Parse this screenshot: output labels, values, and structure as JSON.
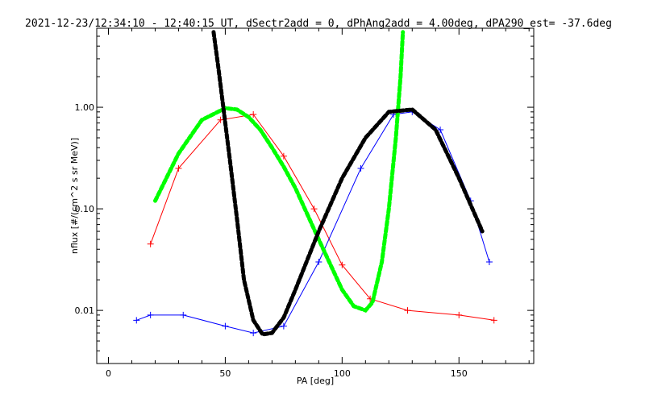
{
  "chart_data": {
    "type": "line",
    "title": "2021-12-23/12:34:10 - 12:40:15 UT, dSectr2add = 0, dPhAng2add = 4.00deg, dPA290_est= -37.6deg",
    "xlabel": "PA [deg]",
    "ylabel": "nflux [#/(cm^2 s sr MeV)]",
    "xlim": [
      -5,
      182
    ],
    "ylim": [
      0.003,
      6.0
    ],
    "yscale": "log",
    "x_ticks": [
      0,
      50,
      100,
      150
    ],
    "x_tick_labels": [
      "0",
      "50",
      "100",
      "150"
    ],
    "y_ticks": [
      0.01,
      0.1,
      1.0
    ],
    "y_tick_labels": [
      "0.01",
      "0.10",
      "1.00"
    ],
    "grid": false,
    "colors": {
      "red": "#ff0000",
      "blue": "#0000ff",
      "green": "#00ff00",
      "black": "#000000"
    },
    "series": [
      {
        "color": "#ff0000",
        "style": "lines+plus",
        "x": [
          18,
          30,
          48,
          62,
          75,
          88,
          100,
          112,
          128,
          150,
          165
        ],
        "values": [
          0.045,
          0.25,
          0.75,
          0.85,
          0.33,
          0.1,
          0.028,
          0.013,
          0.01,
          0.009,
          0.008
        ]
      },
      {
        "color": "#0000ff",
        "style": "lines+plus",
        "x": [
          12,
          18,
          32,
          50,
          62,
          75,
          90,
          108,
          122,
          130,
          142,
          155,
          163
        ],
        "values": [
          0.008,
          0.009,
          0.009,
          0.007,
          0.006,
          0.007,
          0.03,
          0.25,
          0.85,
          0.9,
          0.6,
          0.12,
          0.03
        ]
      },
      {
        "color": "#00ff00",
        "style": "thick-dashed",
        "x": [
          20,
          30,
          40,
          50,
          55,
          60,
          65,
          70,
          75,
          80,
          90,
          100,
          105,
          110,
          113,
          117,
          120,
          123,
          125,
          126
        ],
        "values": [
          0.12,
          0.35,
          0.75,
          0.98,
          0.95,
          0.8,
          0.6,
          0.4,
          0.26,
          0.16,
          0.05,
          0.016,
          0.011,
          0.01,
          0.012,
          0.03,
          0.1,
          0.5,
          2.0,
          5.5
        ]
      },
      {
        "color": "#000000",
        "style": "thick-dashed",
        "x": [
          45,
          47,
          50,
          52,
          55,
          58,
          62,
          66,
          70,
          75,
          80,
          90,
          100,
          110,
          120,
          130,
          140,
          150,
          160
        ],
        "values": [
          5.5,
          2.5,
          0.7,
          0.3,
          0.08,
          0.02,
          0.008,
          0.0058,
          0.006,
          0.0085,
          0.016,
          0.06,
          0.2,
          0.5,
          0.9,
          0.95,
          0.6,
          0.2,
          0.06
        ]
      }
    ]
  }
}
